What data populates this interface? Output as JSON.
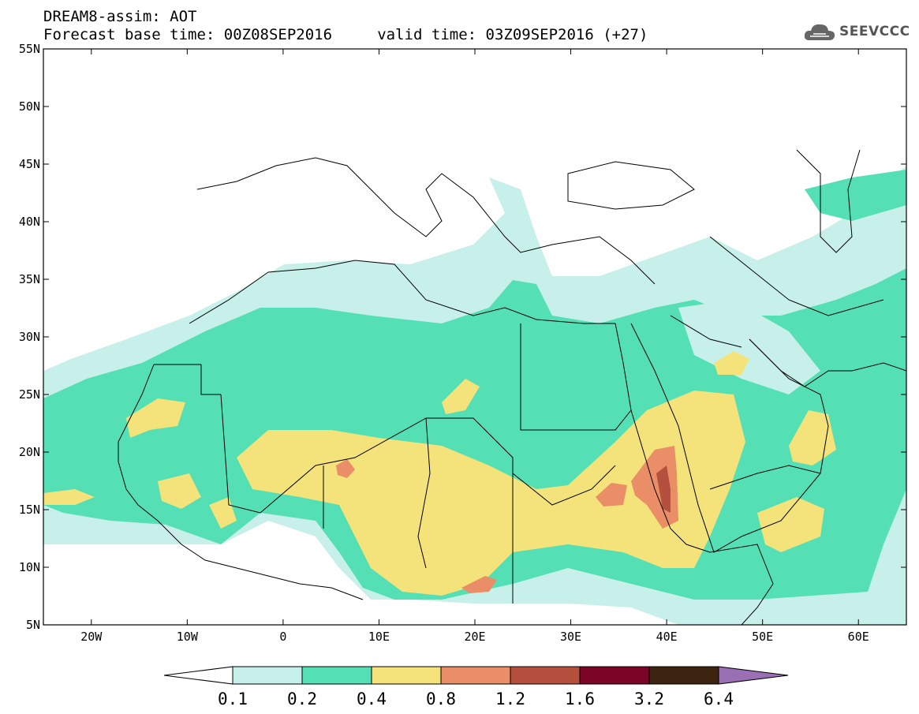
{
  "header": {
    "line1": "DREAM8-assim: AOT",
    "line2": "Forecast base time: 00Z08SEP2016     valid time: 03Z09SEP2016 (+27)"
  },
  "logo": {
    "text": "SEEVCCC",
    "icon": "cloud-icon"
  },
  "map": {
    "lon_range": [
      -25,
      65
    ],
    "lat_range": [
      5,
      55
    ],
    "lat_labels": [
      "55N",
      "50N",
      "45N",
      "40N",
      "35N",
      "30N",
      "25N",
      "20N",
      "15N",
      "10N",
      "5N"
    ],
    "lon_labels": [
      "20W",
      "10W",
      "0",
      "10E",
      "20E",
      "30E",
      "40E",
      "50E",
      "60E"
    ]
  },
  "legend": {
    "levels": [
      "0.1",
      "0.2",
      "0.4",
      "0.8",
      "1.2",
      "1.6",
      "3.2",
      "6.4"
    ],
    "colors": [
      "#c8f0ea",
      "#55dfb5",
      "#f4e27a",
      "#e98e66",
      "#b5503e",
      "#7c0426",
      "#3c2410",
      "#9a6fb3"
    ]
  },
  "colors": {
    "land": "#ffffff",
    "border": "#000000"
  }
}
